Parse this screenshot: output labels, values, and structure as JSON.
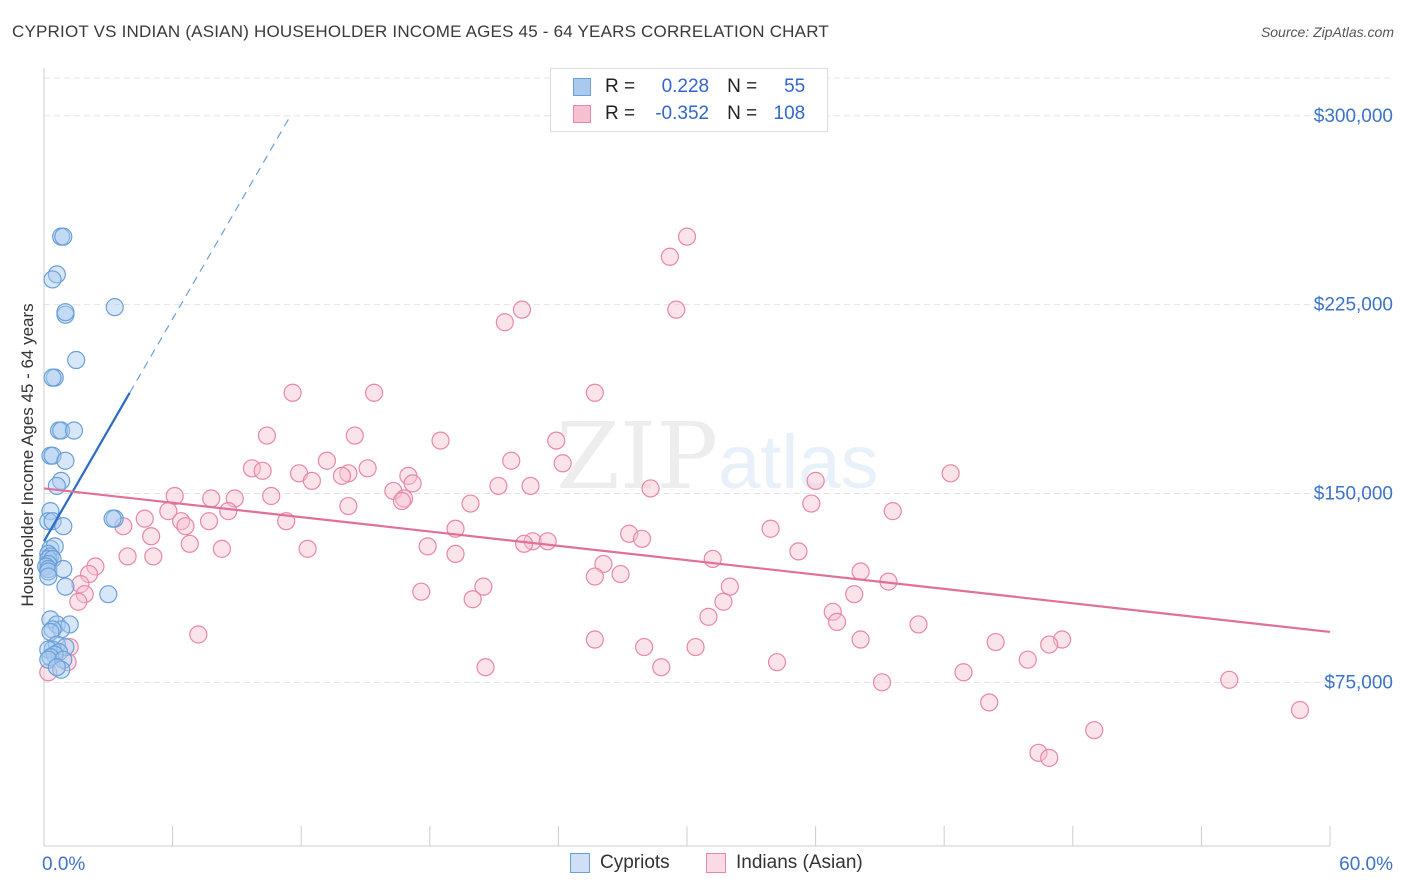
{
  "title": "CYPRIOT VS INDIAN (ASIAN) HOUSEHOLDER INCOME AGES 45 - 64 YEARS CORRELATION CHART",
  "source": "Source: ZipAtlas.com",
  "watermark": {
    "zip": "ZIP",
    "atlas": "atlas"
  },
  "legend": {
    "r_label": "R =",
    "n_label": "N =",
    "series": [
      {
        "r": "0.228",
        "n": "55",
        "color": "#a9c9ef",
        "border": "#6a9fd8"
      },
      {
        "r": "-0.352",
        "n": "108",
        "color": "#f7c0d1",
        "border": "#e886a8"
      }
    ]
  },
  "bottom_legend": [
    {
      "label": "Cypriots",
      "color": "#a9c9ef",
      "border": "#6a9fd8"
    },
    {
      "label": "Indians (Asian)",
      "color": "#f7c0d1",
      "border": "#e886a8"
    }
  ],
  "chart_data": {
    "type": "scatter",
    "title": "CYPRIOT VS INDIAN (ASIAN) HOUSEHOLDER INCOME AGES 45 - 64 YEARS CORRELATION CHART",
    "xlabel": "",
    "ylabel": "Householder Income Ages 45 - 64 years",
    "xlim": [
      0,
      60
    ],
    "ylim": [
      10000,
      315000
    ],
    "x_tick_labels": [
      "0.0%",
      "60.0%"
    ],
    "y_ticks": [
      {
        "value": 75000,
        "label": "$75,000"
      },
      {
        "value": 150000,
        "label": "$150,000"
      },
      {
        "value": 225000,
        "label": "$225,000"
      },
      {
        "value": 300000,
        "label": "$300,000"
      }
    ],
    "grid": true,
    "legend_position": "top-center",
    "series": [
      {
        "name": "Cypriots",
        "color": "#6a9fd8",
        "fill": "#a9c9ef",
        "trend": {
          "x0": 0.0,
          "y0": 131000,
          "x1": 4.0,
          "y1": 190000,
          "dash_to_x": 11.5,
          "dash_to_y": 300000
        },
        "points": [
          [
            0.8,
            252000
          ],
          [
            0.9,
            252000
          ],
          [
            0.6,
            237000
          ],
          [
            0.4,
            235000
          ],
          [
            3.3,
            224000
          ],
          [
            1.0,
            221000
          ],
          [
            1.0,
            222000
          ],
          [
            1.5,
            203000
          ],
          [
            0.5,
            196000
          ],
          [
            0.4,
            196000
          ],
          [
            0.7,
            175000
          ],
          [
            0.8,
            175000
          ],
          [
            1.4,
            175000
          ],
          [
            0.3,
            165000
          ],
          [
            0.4,
            165000
          ],
          [
            1.0,
            163000
          ],
          [
            0.8,
            155000
          ],
          [
            0.6,
            153000
          ],
          [
            0.3,
            143000
          ],
          [
            3.3,
            140000
          ],
          [
            3.2,
            140000
          ],
          [
            0.2,
            139000
          ],
          [
            0.4,
            139000
          ],
          [
            0.9,
            137000
          ],
          [
            0.3,
            128000
          ],
          [
            0.5,
            129000
          ],
          [
            0.2,
            126000
          ],
          [
            0.3,
            125000
          ],
          [
            0.2,
            124000
          ],
          [
            0.4,
            124000
          ],
          [
            0.2,
            122000
          ],
          [
            0.1,
            121000
          ],
          [
            0.2,
            120000
          ],
          [
            0.2,
            119000
          ],
          [
            0.9,
            120000
          ],
          [
            0.2,
            117000
          ],
          [
            1.0,
            113000
          ],
          [
            3.0,
            110000
          ],
          [
            0.3,
            100000
          ],
          [
            0.6,
            98000
          ],
          [
            1.2,
            98000
          ],
          [
            0.8,
            96000
          ],
          [
            0.4,
            96000
          ],
          [
            0.3,
            95000
          ],
          [
            0.6,
            90000
          ],
          [
            1.0,
            89000
          ],
          [
            0.4,
            88000
          ],
          [
            0.2,
            88000
          ],
          [
            0.7,
            87000
          ],
          [
            0.5,
            86000
          ],
          [
            0.3,
            85000
          ],
          [
            0.2,
            84000
          ],
          [
            0.9,
            84000
          ],
          [
            0.8,
            80000
          ],
          [
            0.6,
            81000
          ]
        ]
      },
      {
        "name": "Indians (Asian)",
        "color": "#e886a8",
        "fill": "#f7c0d1",
        "trend": {
          "x0": 0.0,
          "y0": 152000,
          "x1": 60.0,
          "y1": 95000
        },
        "points": [
          [
            30.0,
            252000
          ],
          [
            29.2,
            244000
          ],
          [
            22.3,
            223000
          ],
          [
            29.5,
            223000
          ],
          [
            21.5,
            218000
          ],
          [
            11.6,
            190000
          ],
          [
            15.4,
            190000
          ],
          [
            25.7,
            190000
          ],
          [
            10.4,
            173000
          ],
          [
            14.5,
            173000
          ],
          [
            18.5,
            171000
          ],
          [
            23.9,
            171000
          ],
          [
            13.2,
            163000
          ],
          [
            21.8,
            163000
          ],
          [
            24.2,
            162000
          ],
          [
            9.7,
            160000
          ],
          [
            15.1,
            160000
          ],
          [
            42.3,
            158000
          ],
          [
            10.2,
            159000
          ],
          [
            11.9,
            158000
          ],
          [
            14.2,
            158000
          ],
          [
            17.0,
            157000
          ],
          [
            13.9,
            157000
          ],
          [
            36.0,
            155000
          ],
          [
            12.5,
            155000
          ],
          [
            17.2,
            154000
          ],
          [
            22.7,
            153000
          ],
          [
            21.2,
            153000
          ],
          [
            28.3,
            152000
          ],
          [
            16.3,
            151000
          ],
          [
            6.1,
            149000
          ],
          [
            10.6,
            149000
          ],
          [
            8.9,
            148000
          ],
          [
            7.8,
            148000
          ],
          [
            16.8,
            148000
          ],
          [
            16.7,
            147000
          ],
          [
            19.9,
            146000
          ],
          [
            35.8,
            146000
          ],
          [
            14.2,
            145000
          ],
          [
            5.8,
            143000
          ],
          [
            8.6,
            143000
          ],
          [
            39.6,
            143000
          ],
          [
            4.7,
            140000
          ],
          [
            6.4,
            139000
          ],
          [
            7.7,
            139000
          ],
          [
            11.3,
            139000
          ],
          [
            6.6,
            137000
          ],
          [
            3.7,
            137000
          ],
          [
            19.2,
            136000
          ],
          [
            33.9,
            136000
          ],
          [
            27.3,
            134000
          ],
          [
            5.0,
            133000
          ],
          [
            27.9,
            132000
          ],
          [
            22.8,
            131000
          ],
          [
            23.5,
            131000
          ],
          [
            22.4,
            130000
          ],
          [
            6.8,
            130000
          ],
          [
            17.9,
            129000
          ],
          [
            12.3,
            128000
          ],
          [
            8.3,
            128000
          ],
          [
            35.2,
            127000
          ],
          [
            19.2,
            126000
          ],
          [
            5.1,
            125000
          ],
          [
            3.9,
            125000
          ],
          [
            31.2,
            124000
          ],
          [
            26.1,
            122000
          ],
          [
            2.4,
            121000
          ],
          [
            38.1,
            119000
          ],
          [
            2.1,
            118000
          ],
          [
            26.9,
            118000
          ],
          [
            25.7,
            117000
          ],
          [
            39.4,
            115000
          ],
          [
            1.7,
            114000
          ],
          [
            20.5,
            113000
          ],
          [
            32.0,
            113000
          ],
          [
            17.6,
            111000
          ],
          [
            1.9,
            110000
          ],
          [
            37.8,
            110000
          ],
          [
            20.0,
            108000
          ],
          [
            31.7,
            107000
          ],
          [
            1.6,
            107000
          ],
          [
            36.8,
            103000
          ],
          [
            31.0,
            101000
          ],
          [
            37.0,
            99000
          ],
          [
            40.8,
            98000
          ],
          [
            7.2,
            94000
          ],
          [
            25.7,
            92000
          ],
          [
            38.1,
            92000
          ],
          [
            47.5,
            92000
          ],
          [
            44.4,
            91000
          ],
          [
            46.9,
            90000
          ],
          [
            28.0,
            89000
          ],
          [
            30.4,
            89000
          ],
          [
            1.2,
            89000
          ],
          [
            45.9,
            84000
          ],
          [
            34.2,
            83000
          ],
          [
            28.8,
            81000
          ],
          [
            20.6,
            81000
          ],
          [
            42.9,
            79000
          ],
          [
            1.1,
            83000
          ],
          [
            0.2,
            79000
          ],
          [
            55.3,
            76000
          ],
          [
            39.1,
            75000
          ],
          [
            44.1,
            67000
          ],
          [
            58.6,
            64000
          ],
          [
            49.0,
            56000
          ],
          [
            46.4,
            47000
          ],
          [
            46.9,
            45000
          ]
        ]
      }
    ]
  }
}
